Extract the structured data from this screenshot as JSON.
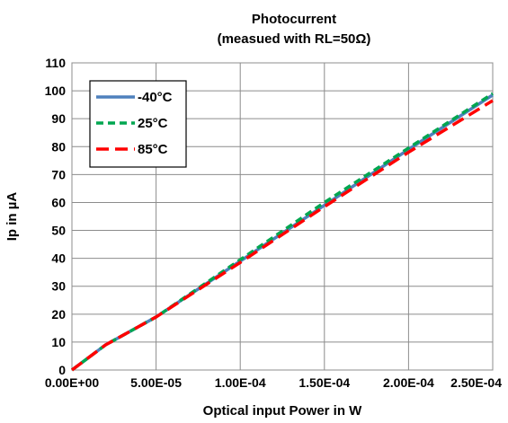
{
  "chart_data": {
    "type": "line",
    "title": "Photocurrent",
    "subtitle": "(measued with RL=50Ω)",
    "xlabel": "Optical input Power in W",
    "ylabel": "Ip in µA",
    "xlim": [
      0,
      0.00025
    ],
    "ylim": [
      0,
      110
    ],
    "x_ticks": [
      "0.00E+00",
      "5.00E-05",
      "1.00E-04",
      "1.50E-04",
      "2.00E-04",
      "2.50E-04"
    ],
    "y_ticks": [
      "0",
      "10",
      "20",
      "30",
      "40",
      "50",
      "60",
      "70",
      "80",
      "90",
      "100",
      "110"
    ],
    "grid": true,
    "legend_position": "top-left",
    "series": [
      {
        "name": "-40°C",
        "color": "#4f81bd",
        "dash": "solid",
        "x": [
          0,
          2e-05,
          5e-05,
          0.0001,
          0.00015,
          0.0002,
          0.00025
        ],
        "y": [
          0,
          9,
          19,
          39,
          59,
          79,
          98.5
        ]
      },
      {
        "name": "25°C",
        "color": "#00a650",
        "dash": "dash-short",
        "x": [
          0,
          2e-05,
          5e-05,
          0.0001,
          0.00015,
          0.0002,
          0.00025
        ],
        "y": [
          0,
          9,
          19,
          39.5,
          60,
          79.5,
          99
        ]
      },
      {
        "name": "85°C",
        "color": "#ff0000",
        "dash": "dash-long",
        "x": [
          0,
          2e-05,
          5e-05,
          0.0001,
          0.00015,
          0.0002,
          0.00025
        ],
        "y": [
          0,
          9,
          19,
          38.5,
          58.5,
          78,
          96.5
        ]
      }
    ]
  }
}
